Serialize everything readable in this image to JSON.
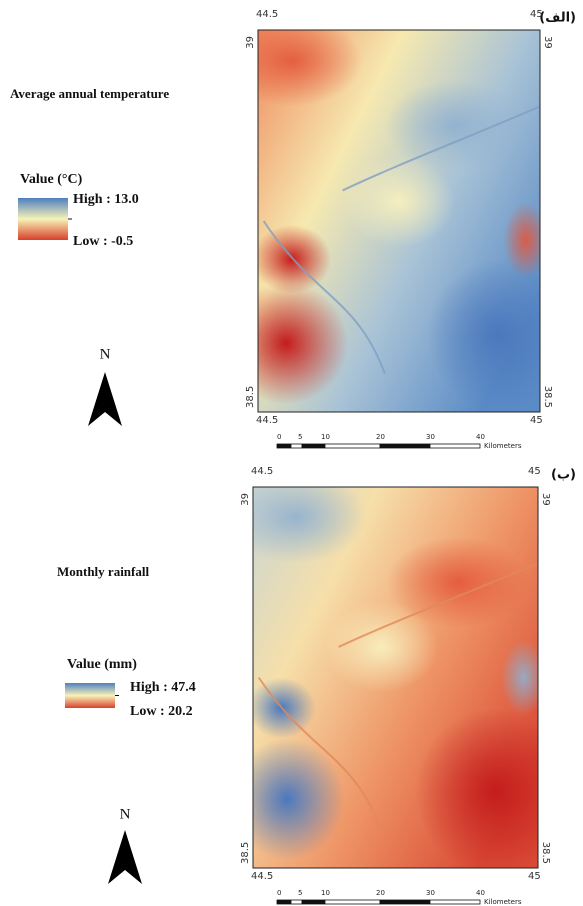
{
  "panels": [
    {
      "label": "(الف)",
      "title": "Average annual temperature",
      "legend": {
        "title": "Value (°C)",
        "high": "High : 13.0",
        "low": "Low : -0.5"
      },
      "north": "N",
      "coords": {
        "top_left": "44.5",
        "top_right": "45",
        "left_top": "39",
        "right_top": "39",
        "left_bottom": "38.5",
        "right_bottom": "38.5",
        "bottom_left": "44.5",
        "bottom_right": "45"
      },
      "scale": {
        "ticks": [
          "0",
          "5",
          "10",
          "20",
          "30",
          "40"
        ],
        "unit": "Kilometers"
      }
    },
    {
      "label": "(ب)",
      "title": "Monthly rainfall",
      "legend": {
        "title": "Value (mm)",
        "high": "High : 47.4",
        "low": "Low : 20.2"
      },
      "north": "N",
      "coords": {
        "top_left": "44.5",
        "top_right": "45",
        "left_top": "39",
        "right_top": "39",
        "left_bottom": "38.5",
        "right_bottom": "38.5",
        "bottom_left": "44.5",
        "bottom_right": "45"
      },
      "scale": {
        "ticks": [
          "0",
          "5",
          "10",
          "20",
          "30",
          "40"
        ],
        "unit": "Kilometers"
      }
    }
  ]
}
